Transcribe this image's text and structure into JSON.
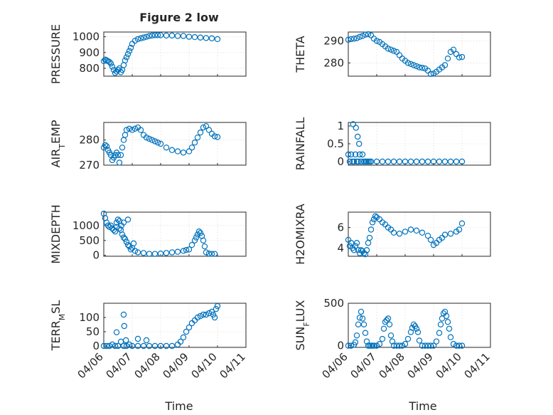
{
  "figure": {
    "title": "Figure 2 low",
    "marker_color": "#0072bd",
    "grid": true
  },
  "chart_data": [
    {
      "type": "scatter",
      "title": "Figure 2 low",
      "ylabel": "PRESSURE",
      "ylabel_sub": null,
      "ylim": [
        750,
        1030
      ],
      "yticks": [
        800,
        900,
        1000
      ],
      "x": [
        0,
        0.05,
        0.1,
        0.15,
        0.2,
        0.25,
        0.3,
        0.35,
        0.4,
        0.45,
        0.5,
        0.55,
        0.6,
        0.65,
        0.7,
        0.75,
        0.8,
        0.85,
        0.9,
        0.95,
        1.0,
        1.1,
        1.2,
        1.3,
        1.4,
        1.5,
        1.6,
        1.7,
        1.8,
        1.9,
        2.0,
        2.2,
        2.4,
        2.6,
        2.8,
        3.0,
        3.2,
        3.4,
        3.6,
        3.8,
        4.0
      ],
      "y": [
        845,
        855,
        850,
        845,
        840,
        830,
        810,
        790,
        770,
        780,
        790,
        800,
        775,
        790,
        820,
        850,
        870,
        890,
        910,
        930,
        955,
        975,
        985,
        990,
        995,
        1000,
        1005,
        1008,
        1010,
        1010,
        1010,
        1008,
        1008,
        1005,
        1005,
        1000,
        998,
        995,
        992,
        990,
        985
      ]
    },
    {
      "type": "scatter",
      "title": "",
      "ylabel": "THETA",
      "ylabel_sub": null,
      "ylim": [
        274,
        294
      ],
      "yticks": [
        280,
        290
      ],
      "x": [
        0,
        0.1,
        0.2,
        0.3,
        0.4,
        0.5,
        0.6,
        0.7,
        0.8,
        0.9,
        1.0,
        1.1,
        1.2,
        1.3,
        1.4,
        1.5,
        1.6,
        1.7,
        1.8,
        1.9,
        2.0,
        2.1,
        2.2,
        2.3,
        2.4,
        2.5,
        2.6,
        2.7,
        2.8,
        2.9,
        3.0,
        3.1,
        3.2,
        3.3,
        3.4,
        3.5,
        3.6,
        3.7,
        3.8,
        3.9,
        4.0
      ],
      "y": [
        290.5,
        290.8,
        291,
        291.2,
        291.8,
        292.2,
        292.8,
        293,
        292.5,
        291,
        290,
        289.5,
        288.5,
        287.5,
        286.5,
        286,
        285.5,
        285,
        283.5,
        282,
        281,
        280,
        279.5,
        279,
        278.5,
        278,
        277.8,
        277.5,
        276.5,
        275,
        275.2,
        276,
        277,
        278,
        279,
        282,
        285,
        286,
        284,
        282.5,
        282.7
      ]
    },
    {
      "type": "scatter",
      "title": "",
      "ylabel": "AIR",
      "ylabel_sub": "T",
      "ylabel_suffix": "EMP",
      "ylim": [
        270,
        287
      ],
      "yticks": [
        270,
        280
      ],
      "x": [
        0,
        0.05,
        0.1,
        0.15,
        0.2,
        0.25,
        0.3,
        0.35,
        0.4,
        0.45,
        0.5,
        0.55,
        0.6,
        0.65,
        0.7,
        0.75,
        0.8,
        0.9,
        1.0,
        1.1,
        1.2,
        1.3,
        1.4,
        1.5,
        1.6,
        1.7,
        1.8,
        1.9,
        2.0,
        2.2,
        2.4,
        2.6,
        2.8,
        3.0,
        3.1,
        3.2,
        3.3,
        3.4,
        3.5,
        3.6,
        3.7,
        3.8,
        3.9,
        4.0
      ],
      "y": [
        277,
        278,
        277.5,
        276,
        275,
        274,
        272,
        273,
        274,
        275,
        274,
        271,
        274,
        277,
        280,
        282,
        284,
        284.5,
        284,
        284.5,
        285,
        284,
        282,
        281,
        280.5,
        280,
        279.5,
        279,
        278.5,
        277,
        276,
        275.5,
        275,
        275.5,
        277,
        279,
        281,
        283,
        285,
        285.5,
        284,
        282.5,
        281.5,
        281.2
      ]
    },
    {
      "type": "scatter",
      "title": "",
      "ylabel": "RAINFALL",
      "ylabel_sub": null,
      "ylim": [
        -0.1,
        1.1
      ],
      "yticks": [
        0,
        0.5,
        1
      ],
      "ytick_labels": [
        "0",
        "0.5",
        "1"
      ],
      "x": [
        0,
        0.05,
        0.1,
        0.15,
        0.2,
        0.25,
        0.3,
        0.35,
        0.4,
        0.45,
        0.5,
        0.55,
        0.6,
        0.65,
        0.7,
        0.75,
        0.8,
        1.0,
        1.2,
        1.4,
        1.6,
        1.8,
        2.0,
        2.2,
        2.4,
        2.6,
        2.8,
        3.0,
        3.2,
        3.4,
        3.6,
        3.8,
        4.0,
        0.17,
        0.27,
        0.33,
        0.38
      ],
      "y": [
        0.2,
        0,
        0.2,
        0,
        0,
        0.2,
        0,
        0,
        0.2,
        0,
        0.2,
        0,
        0,
        0,
        0,
        0,
        0,
        0,
        0,
        0,
        0,
        0,
        0,
        0,
        0,
        0,
        0,
        0,
        0,
        0,
        0,
        0,
        0,
        1.05,
        0.95,
        0.7,
        0.5
      ]
    },
    {
      "type": "scatter",
      "title": "",
      "ylabel": "MIXDEPTH",
      "ylabel_sub": null,
      "ylim": [
        -30,
        1450
      ],
      "yticks": [
        0,
        500,
        1000
      ],
      "x": [
        0,
        0.05,
        0.1,
        0.15,
        0.2,
        0.25,
        0.3,
        0.35,
        0.4,
        0.45,
        0.5,
        0.55,
        0.6,
        0.65,
        0.7,
        0.75,
        0.8,
        0.85,
        0.9,
        0.95,
        1.0,
        1.05,
        1.1,
        1.2,
        1.4,
        1.6,
        1.8,
        2.0,
        2.2,
        2.4,
        2.6,
        2.8,
        2.9,
        3.0,
        3.1,
        3.2,
        3.25,
        3.3,
        3.35,
        3.4,
        3.45,
        3.5,
        3.55,
        3.6,
        3.7,
        3.8,
        3.9,
        0.55,
        0.62,
        0.7,
        0.85,
        0.45
      ],
      "y": [
        1400,
        1250,
        1100,
        1000,
        950,
        1000,
        900,
        850,
        800,
        1100,
        1200,
        1150,
        850,
        700,
        600,
        550,
        450,
        350,
        300,
        200,
        250,
        400,
        150,
        100,
        80,
        50,
        50,
        60,
        80,
        100,
        120,
        150,
        180,
        200,
        350,
        500,
        600,
        700,
        800,
        750,
        650,
        500,
        300,
        100,
        60,
        50,
        50,
        900,
        1000,
        1100,
        1200,
        950
      ]
    },
    {
      "type": "scatter",
      "title": "",
      "ylabel": "H2OMIXRA",
      "ylabel_sub": null,
      "ylim": [
        3.2,
        7.5
      ],
      "yticks": [
        4,
        6
      ],
      "x": [
        0,
        0.05,
        0.1,
        0.15,
        0.2,
        0.25,
        0.3,
        0.35,
        0.4,
        0.45,
        0.5,
        0.55,
        0.6,
        0.65,
        0.7,
        0.75,
        0.8,
        0.85,
        0.9,
        0.95,
        1.0,
        1.1,
        1.2,
        1.3,
        1.4,
        1.5,
        1.6,
        1.8,
        2.0,
        2.2,
        2.4,
        2.6,
        2.8,
        2.9,
        3.0,
        3.1,
        3.2,
        3.3,
        3.4,
        3.6,
        3.8,
        3.9,
        4.0
      ],
      "y": [
        4.8,
        4.2,
        4.5,
        4.0,
        3.8,
        4.2,
        4.5,
        3.8,
        3.5,
        3.8,
        3.7,
        3.5,
        3.4,
        3.8,
        4.5,
        5.0,
        5.8,
        6.5,
        6.8,
        7.1,
        7.0,
        6.8,
        6.5,
        6.3,
        6.0,
        5.8,
        5.5,
        5.4,
        5.6,
        5.8,
        5.7,
        5.5,
        5.2,
        4.8,
        4.3,
        4.5,
        4.8,
        5.0,
        5.3,
        5.4,
        5.6,
        5.8,
        6.4
      ]
    },
    {
      "type": "scatter",
      "title": "",
      "ylabel": "TERR",
      "ylabel_sub": "M",
      "ylabel_suffix": "SL",
      "xlabel": "Time",
      "xlim": [
        0,
        5
      ],
      "xtick_labels": [
        "04/06",
        "04/07",
        "04/08",
        "04/09",
        "04/10",
        "04/11"
      ],
      "ylim": [
        -5,
        150
      ],
      "yticks": [
        0,
        50,
        100
      ],
      "x": [
        0,
        0.1,
        0.2,
        0.3,
        0.4,
        0.5,
        0.6,
        0.7,
        0.8,
        0.9,
        1.0,
        1.2,
        1.4,
        1.6,
        1.8,
        2.0,
        2.2,
        2.4,
        2.6,
        2.7,
        2.8,
        2.9,
        3.0,
        3.1,
        3.2,
        3.3,
        3.4,
        3.5,
        3.6,
        3.7,
        3.8,
        3.85,
        3.9,
        3.95,
        4.0,
        0.45,
        0.7,
        0.72,
        0.78,
        1.2,
        1.5
      ],
      "y": [
        0,
        0,
        0,
        5,
        0,
        0,
        15,
        0,
        0,
        5,
        0,
        0,
        0,
        0,
        0,
        0,
        0,
        0,
        5,
        15,
        30,
        50,
        65,
        80,
        90,
        100,
        105,
        110,
        110,
        115,
        120,
        110,
        100,
        130,
        140,
        48,
        110,
        70,
        20,
        25,
        20
      ]
    },
    {
      "type": "scatter",
      "title": "",
      "ylabel": "SUN",
      "ylabel_sub": "F",
      "ylabel_suffix": "LUX",
      "xlabel": "Time",
      "xlim": [
        0,
        5
      ],
      "xtick_labels": [
        "04/06",
        "04/07",
        "04/08",
        "04/09",
        "04/10",
        "04/11"
      ],
      "ylim": [
        -20,
        500
      ],
      "yticks": [
        0,
        500
      ],
      "x": [
        0,
        0.1,
        0.2,
        0.25,
        0.3,
        0.35,
        0.4,
        0.45,
        0.5,
        0.55,
        0.6,
        0.65,
        0.7,
        0.75,
        0.8,
        0.85,
        0.9,
        1.0,
        1.1,
        1.2,
        1.25,
        1.3,
        1.35,
        1.4,
        1.45,
        1.5,
        1.55,
        1.6,
        1.7,
        1.8,
        1.9,
        2.0,
        2.1,
        2.2,
        2.25,
        2.3,
        2.35,
        2.4,
        2.45,
        2.5,
        2.6,
        2.7,
        2.8,
        2.9,
        3.0,
        3.1,
        3.2,
        3.25,
        3.3,
        3.35,
        3.4,
        3.45,
        3.5,
        3.55,
        3.6,
        3.7,
        3.8,
        3.9,
        4.0
      ],
      "y": [
        0,
        0,
        10,
        40,
        120,
        250,
        330,
        400,
        320,
        250,
        150,
        50,
        0,
        0,
        0,
        0,
        0,
        0,
        20,
        80,
        200,
        280,
        300,
        320,
        250,
        120,
        50,
        0,
        0,
        0,
        0,
        20,
        80,
        160,
        210,
        250,
        230,
        200,
        160,
        60,
        0,
        0,
        0,
        0,
        0,
        50,
        150,
        250,
        320,
        380,
        400,
        350,
        280,
        200,
        100,
        20,
        0,
        0,
        0
      ]
    }
  ]
}
